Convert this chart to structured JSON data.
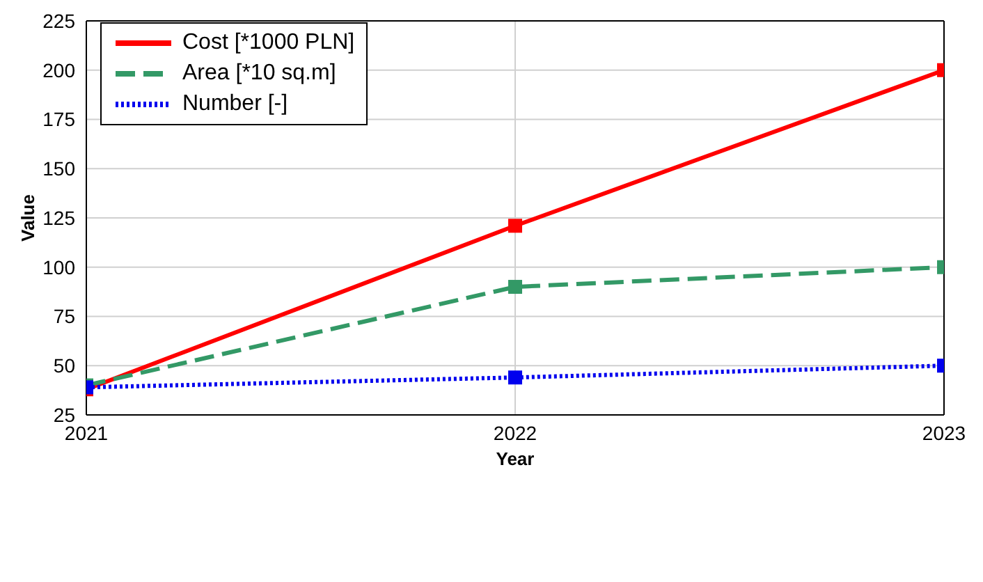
{
  "chart_data": {
    "type": "line",
    "xlabel": "Year",
    "ylabel": "Value",
    "x": [
      2021,
      2022,
      2023
    ],
    "series": [
      {
        "name": "Cost [*1000 PLN]",
        "color": "#ff0000",
        "values": [
          38,
          121,
          200
        ],
        "line_style": "solid"
      },
      {
        "name": "Area [*10 sq.m]",
        "color": "#339966",
        "values": [
          40,
          90,
          100
        ],
        "line_style": "dashed"
      },
      {
        "name": "Number [-]",
        "color": "#0000ee",
        "values": [
          39,
          44,
          50
        ],
        "line_style": "dotted"
      }
    ],
    "xlim": [
      2021,
      2023
    ],
    "xticks": [
      2021,
      2022,
      2023
    ],
    "ylim": [
      25,
      225
    ],
    "yticks": [
      25,
      50,
      75,
      100,
      125,
      150,
      175,
      200,
      225
    ],
    "grid": true,
    "legend": "top left",
    "marker": "square"
  }
}
